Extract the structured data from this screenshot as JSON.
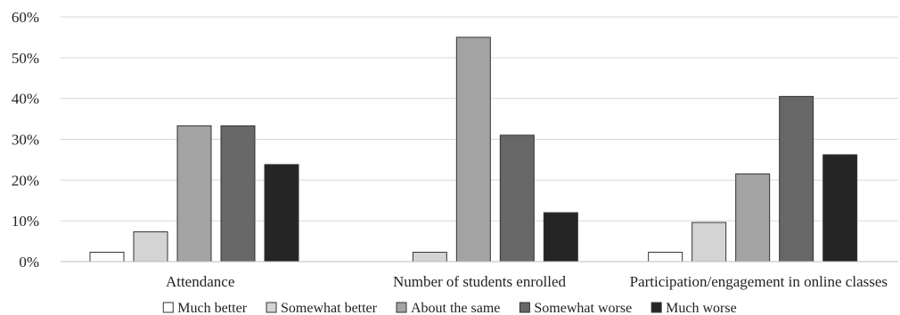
{
  "chart_data": {
    "type": "bar",
    "categories": [
      "Attendance",
      "Number of students enrolled",
      "Participation/engagement in online classes"
    ],
    "series": [
      {
        "name": "Much better",
        "values": [
          2.3,
          0,
          2.3
        ],
        "color": "#ffffff"
      },
      {
        "name": "Somewhat better",
        "values": [
          7.3,
          2.3,
          9.6
        ],
        "color": "#d4d4d4"
      },
      {
        "name": "About the same",
        "values": [
          33.3,
          55,
          21.5
        ],
        "color": "#a3a3a3"
      },
      {
        "name": "Somewhat worse",
        "values": [
          33.3,
          31,
          40.5
        ],
        "color": "#676767"
      },
      {
        "name": "Much worse",
        "values": [
          23.8,
          12,
          26.2
        ],
        "color": "#252525"
      }
    ],
    "title": "",
    "xlabel": "",
    "ylabel": "",
    "ylim": [
      0,
      60
    ],
    "yticks": [
      "0%",
      "10%",
      "20%",
      "30%",
      "40%",
      "50%",
      "60%"
    ],
    "grid": true,
    "legend_position": "bottom"
  }
}
